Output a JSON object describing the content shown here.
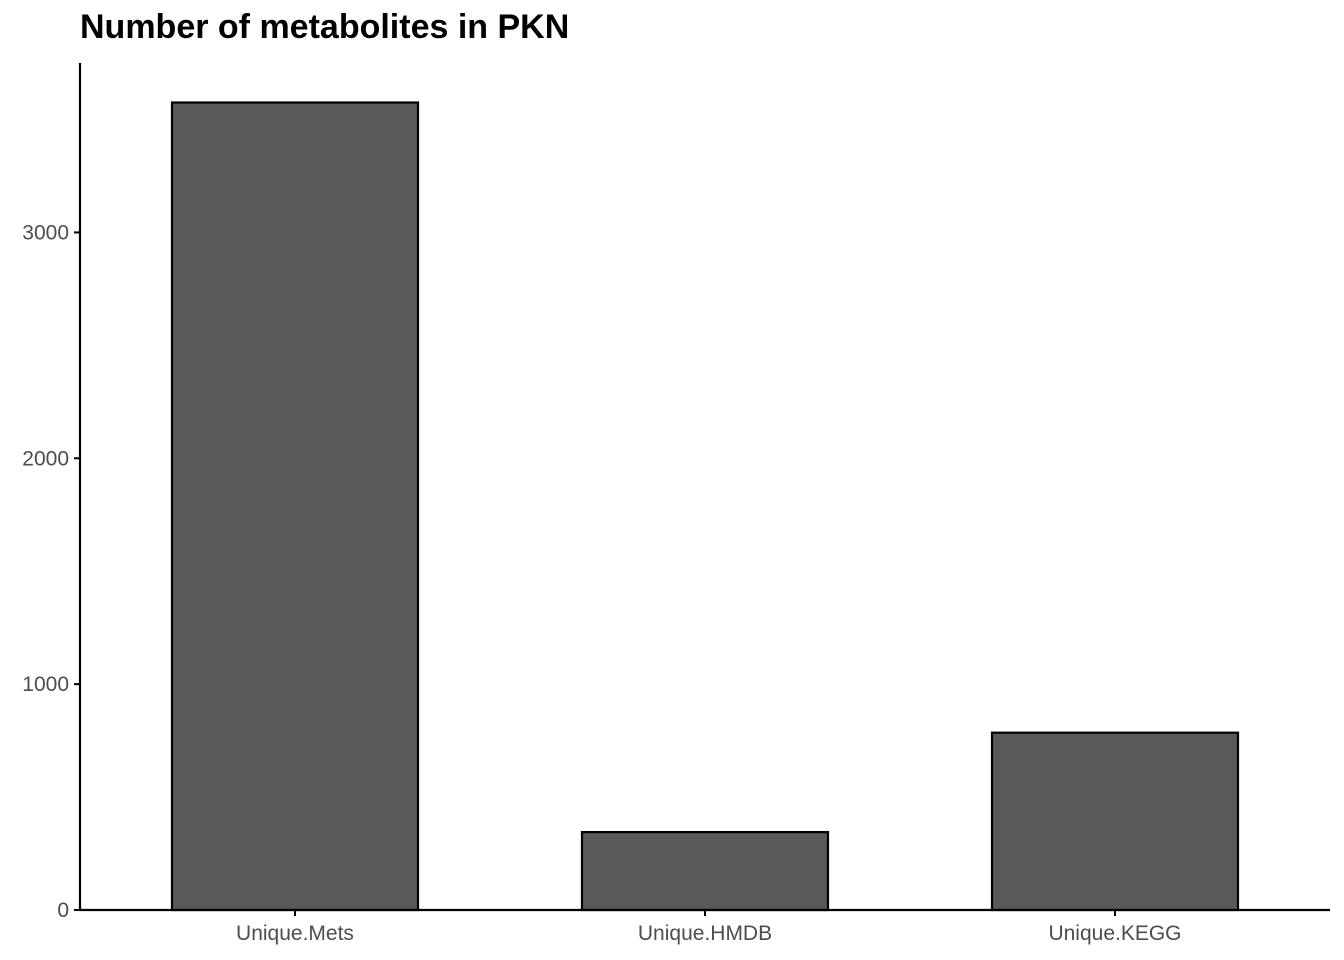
{
  "chart_data": {
    "type": "bar",
    "title": "Number of metabolites in PKN",
    "xlabel": "",
    "ylabel": "",
    "categories": [
      "Unique.Mets",
      "Unique.HMDB",
      "Unique.KEGG"
    ],
    "values": [
      3575,
      345,
      785
    ],
    "ylim": [
      0,
      3750
    ],
    "yticks": [
      0,
      1000,
      2000,
      3000
    ],
    "grid": false,
    "legend": "none",
    "colors": {
      "bar_fill": "#595959",
      "bar_stroke": "#000000",
      "axis": "#000000",
      "tick_label": "#4d4d4d"
    }
  }
}
